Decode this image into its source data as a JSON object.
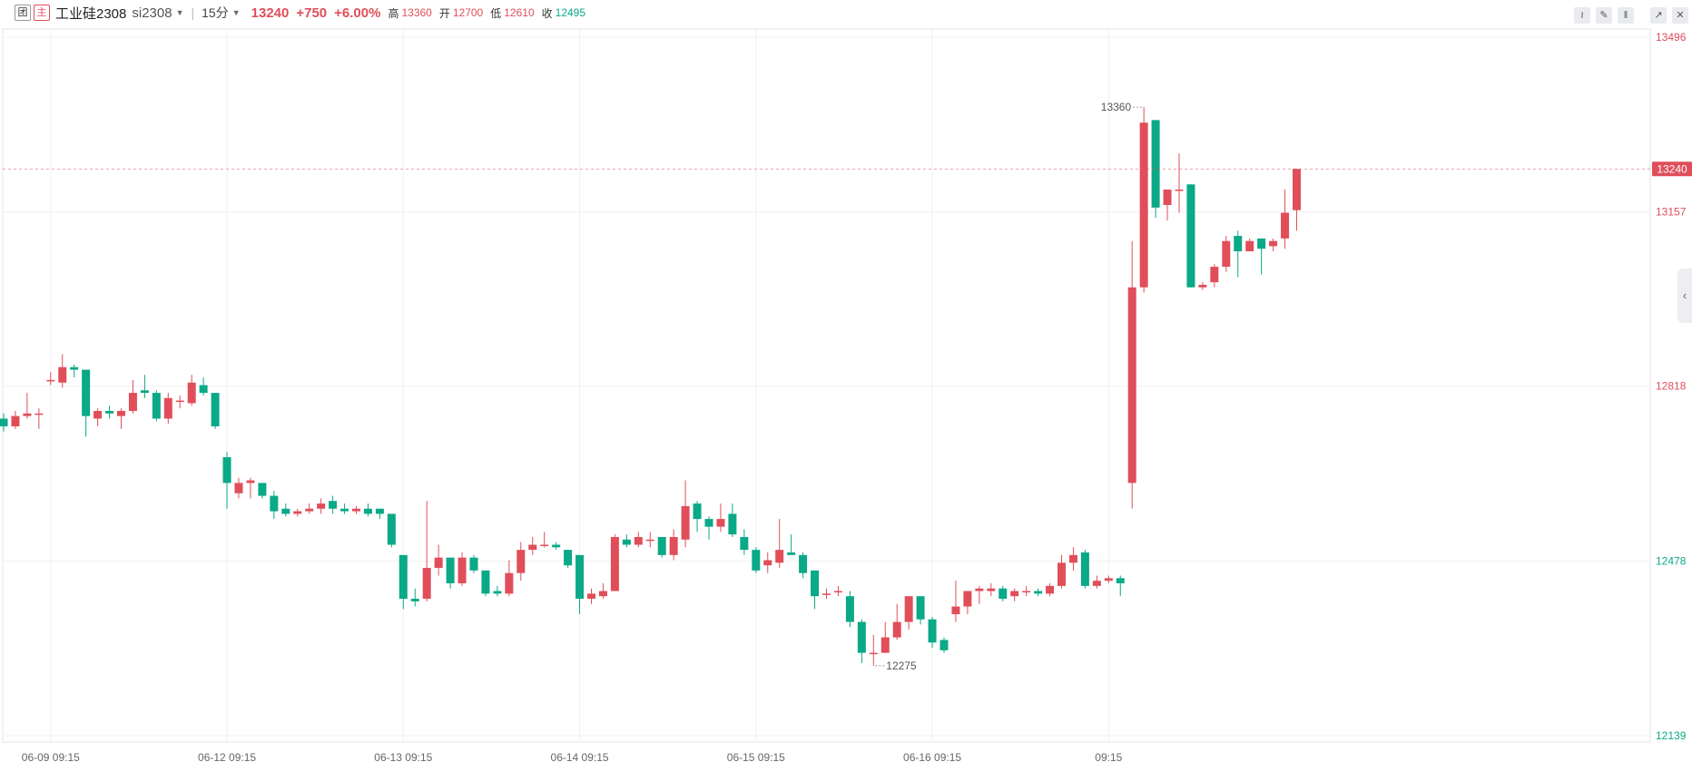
{
  "header": {
    "btn1": "团",
    "btn2": "主",
    "title": "工业硅2308",
    "code": "si2308",
    "period": "15分",
    "price": "13240",
    "change": "+750",
    "pct": "+6.00%",
    "high_label": "高",
    "high": "13360",
    "open_label": "开",
    "open": "12700",
    "low_label": "低",
    "low": "12610",
    "close_label": "收",
    "close": "12495"
  },
  "toolbar": {
    "icons": [
      "line-tool-icon",
      "draw-tool-icon",
      "candle-type-icon",
      "collapse-icon",
      "close-icon"
    ],
    "icon_chars": [
      "≀",
      "✎",
      "‖",
      "↗",
      "✕"
    ]
  },
  "side_tab": "‹",
  "colors": {
    "up": "#e04e5a",
    "down": "#0aa987",
    "grid": "#f0f0f0",
    "text": "#555555"
  },
  "chart_data": {
    "type": "candlestick",
    "y_axis": {
      "ticks": [
        13496,
        13157,
        12818,
        12478,
        12139
      ],
      "range": [
        12139,
        13496
      ],
      "last_price": 13240
    },
    "x_axis": {
      "labels": [
        "06-09 09:15",
        "06-12 09:15",
        "06-13 09:15",
        "06-14 09:15",
        "06-15 09:15",
        "06-16 09:15",
        "09:15"
      ]
    },
    "annotations": {
      "high": "13360",
      "low": "12275"
    },
    "candles": [
      [
        12755,
        12740,
        12765,
        12730
      ],
      [
        12740,
        12760,
        12770,
        12735
      ],
      [
        12760,
        12765,
        12805,
        12755
      ],
      [
        12765,
        12765,
        12775,
        12735
      ],
      [
        12830,
        12830,
        12845,
        12820
      ],
      [
        12825,
        12855,
        12880,
        12815
      ],
      [
        12855,
        12850,
        12860,
        12835
      ],
      [
        12850,
        12760,
        12850,
        12720
      ],
      [
        12755,
        12770,
        12775,
        12740
      ],
      [
        12770,
        12765,
        12780,
        12755
      ],
      [
        12760,
        12770,
        12775,
        12735
      ],
      [
        12770,
        12805,
        12830,
        12765
      ],
      [
        12810,
        12805,
        12840,
        12795
      ],
      [
        12805,
        12755,
        12810,
        12750
      ],
      [
        12755,
        12795,
        12805,
        12745
      ],
      [
        12790,
        12790,
        12800,
        12775
      ],
      [
        12785,
        12825,
        12840,
        12780
      ],
      [
        12820,
        12805,
        12835,
        12800
      ],
      [
        12805,
        12740,
        12805,
        12735
      ],
      [
        12680,
        12630,
        12690,
        12580
      ],
      [
        12610,
        12630,
        12640,
        12600
      ],
      [
        12630,
        12635,
        12640,
        12600
      ],
      [
        12630,
        12605,
        12630,
        12600
      ],
      [
        12605,
        12575,
        12615,
        12560
      ],
      [
        12580,
        12570,
        12590,
        12565
      ],
      [
        12570,
        12575,
        12580,
        12565
      ],
      [
        12575,
        12580,
        12590,
        12570
      ],
      [
        12580,
        12590,
        12600,
        12570
      ],
      [
        12595,
        12580,
        12605,
        12570
      ],
      [
        12580,
        12575,
        12590,
        12570
      ],
      [
        12575,
        12580,
        12585,
        12570
      ],
      [
        12580,
        12570,
        12590,
        12565
      ],
      [
        12580,
        12570,
        12580,
        12560
      ],
      [
        12570,
        12510,
        12570,
        12505
      ],
      [
        12490,
        12405,
        12490,
        12385
      ],
      [
        12405,
        12400,
        12425,
        12390
      ],
      [
        12405,
        12465,
        12595,
        12400
      ],
      [
        12465,
        12485,
        12510,
        12450
      ],
      [
        12485,
        12435,
        12485,
        12425
      ],
      [
        12435,
        12485,
        12495,
        12430
      ],
      [
        12485,
        12460,
        12490,
        12455
      ],
      [
        12460,
        12415,
        12460,
        12410
      ],
      [
        12420,
        12415,
        12430,
        12410
      ],
      [
        12415,
        12455,
        12480,
        12410
      ],
      [
        12455,
        12500,
        12515,
        12440
      ],
      [
        12500,
        12510,
        12525,
        12490
      ],
      [
        12510,
        12510,
        12535,
        12505
      ],
      [
        12510,
        12505,
        12515,
        12500
      ],
      [
        12500,
        12470,
        12500,
        12465
      ],
      [
        12490,
        12405,
        12490,
        12375
      ],
      [
        12405,
        12415,
        12425,
        12395
      ],
      [
        12410,
        12420,
        12435,
        12405
      ],
      [
        12420,
        12525,
        12530,
        12420
      ],
      [
        12520,
        12510,
        12530,
        12505
      ],
      [
        12510,
        12525,
        12535,
        12505
      ],
      [
        12520,
        12520,
        12535,
        12505
      ],
      [
        12525,
        12490,
        12525,
        12485
      ],
      [
        12490,
        12525,
        12540,
        12480
      ],
      [
        12520,
        12585,
        12635,
        12505
      ],
      [
        12590,
        12560,
        12595,
        12535
      ],
      [
        12560,
        12545,
        12565,
        12520
      ],
      [
        12545,
        12560,
        12590,
        12535
      ],
      [
        12570,
        12530,
        12590,
        12525
      ],
      [
        12525,
        12500,
        12540,
        12490
      ],
      [
        12500,
        12460,
        12505,
        12455
      ],
      [
        12470,
        12480,
        12495,
        12455
      ],
      [
        12475,
        12500,
        12560,
        12465
      ],
      [
        12495,
        12490,
        12530,
        12490
      ],
      [
        12490,
        12455,
        12495,
        12445
      ],
      [
        12460,
        12410,
        12460,
        12385
      ],
      [
        12415,
        12415,
        12425,
        12405
      ],
      [
        12420,
        12420,
        12430,
        12410
      ],
      [
        12410,
        12360,
        12420,
        12350
      ],
      [
        12360,
        12300,
        12365,
        12280
      ],
      [
        12300,
        12300,
        12335,
        12275
      ],
      [
        12300,
        12330,
        12360,
        12300
      ],
      [
        12330,
        12360,
        12395,
        12325
      ],
      [
        12360,
        12410,
        12410,
        12345
      ],
      [
        12410,
        12365,
        12410,
        12355
      ],
      [
        12365,
        12320,
        12370,
        12310
      ],
      [
        12325,
        12305,
        12330,
        12300
      ],
      [
        12375,
        12390,
        12440,
        12360
      ],
      [
        12390,
        12420,
        12420,
        12375
      ],
      [
        12420,
        12425,
        12430,
        12395
      ],
      [
        12420,
        12425,
        12435,
        12410
      ],
      [
        12425,
        12405,
        12430,
        12400
      ],
      [
        12410,
        12420,
        12425,
        12400
      ],
      [
        12420,
        12420,
        12430,
        12410
      ],
      [
        12420,
        12415,
        12425,
        12410
      ],
      [
        12415,
        12430,
        12435,
        12410
      ],
      [
        12430,
        12475,
        12490,
        12425
      ],
      [
        12475,
        12490,
        12505,
        12460
      ],
      [
        12495,
        12430,
        12500,
        12425
      ],
      [
        12430,
        12440,
        12450,
        12425
      ],
      [
        12440,
        12445,
        12450,
        12435
      ],
      [
        12445,
        12435,
        12450,
        12410
      ],
      [
        12630,
        13010,
        13100,
        12580
      ],
      [
        13010,
        13330,
        13360,
        13000
      ],
      [
        13335,
        13165,
        13330,
        13145
      ],
      [
        13170,
        13200,
        13200,
        13140
      ],
      [
        13200,
        13200,
        13270,
        13155
      ],
      [
        13210,
        13010,
        13210,
        13010
      ],
      [
        13010,
        13015,
        13020,
        13005
      ],
      [
        13020,
        13050,
        13055,
        13010
      ],
      [
        13050,
        13100,
        13110,
        13040
      ],
      [
        13110,
        13080,
        13120,
        13030
      ],
      [
        13080,
        13100,
        13105,
        13080
      ],
      [
        13105,
        13085,
        13100,
        13035
      ],
      [
        13090,
        13100,
        13105,
        13080
      ],
      [
        13105,
        13155,
        13200,
        13085
      ],
      [
        13160,
        13240,
        13240,
        13120
      ]
    ]
  }
}
